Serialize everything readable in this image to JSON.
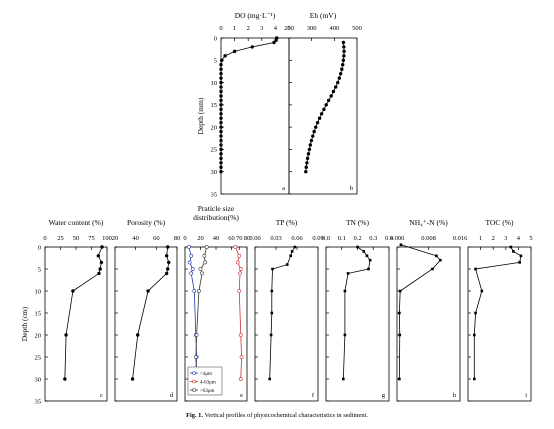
{
  "caption": {
    "label": "Fig. 1.",
    "text": "Vertical profiles of physicochemical characteristics in sediment."
  },
  "chart_data": [
    {
      "id": "a",
      "type": "line",
      "panel_letter": "a",
      "title": "DO (mg·L⁻¹)",
      "ylabel": "Depth (mm)",
      "xlim": [
        0,
        5
      ],
      "ylim": [
        0,
        35
      ],
      "y_inverted": true,
      "xticks": [
        0,
        1,
        2,
        3,
        4,
        5
      ],
      "yticks": [
        0,
        5,
        10,
        15,
        20,
        25,
        30,
        35
      ],
      "series": [
        {
          "marker": "circle",
          "color": "#000000",
          "x": [
            4.1,
            4.05,
            3.9,
            2.3,
            1.0,
            0.3,
            0.05,
            0,
            0,
            0,
            0,
            0,
            0,
            0,
            0,
            0,
            0,
            0,
            0,
            0,
            0,
            0,
            0,
            0,
            0,
            0,
            0,
            0,
            0,
            0,
            0,
            0
          ],
          "y": [
            0,
            0.5,
            1,
            2,
            3,
            4,
            5,
            6,
            7,
            8,
            9,
            10,
            11,
            12,
            13,
            14,
            15,
            16,
            17,
            18,
            19,
            20,
            21,
            22,
            23,
            24,
            25,
            26,
            27,
            28,
            29,
            30
          ]
        }
      ]
    },
    {
      "id": "b",
      "type": "line",
      "panel_letter": "b",
      "title": "Eh (mV)",
      "xlim": [
        200,
        500
      ],
      "ylim": [
        0,
        35
      ],
      "y_inverted": true,
      "xticks": [
        200,
        300,
        400,
        500
      ],
      "yticks": [
        0,
        5,
        10,
        15,
        20,
        25,
        30,
        35
      ],
      "series": [
        {
          "marker": "circle",
          "color": "#000000",
          "x": [
            440,
            442,
            443,
            442,
            440,
            437,
            433,
            428,
            422,
            415,
            406,
            396,
            386,
            375,
            364,
            354,
            344,
            335,
            326,
            318,
            311,
            305,
            299,
            294,
            290,
            286,
            282,
            279,
            276,
            274
          ],
          "y": [
            1,
            2,
            3,
            4,
            5,
            6,
            7,
            8,
            9,
            10,
            11,
            12,
            13,
            14,
            15,
            16,
            17,
            18,
            19,
            20,
            21,
            22,
            23,
            24,
            25,
            26,
            27,
            28,
            29,
            30
          ]
        }
      ]
    },
    {
      "id": "c",
      "type": "line",
      "panel_letter": "c",
      "title": "Water content (%)",
      "ylabel": "Depth (cm)",
      "xlim": [
        0,
        100
      ],
      "ylim": [
        0,
        35
      ],
      "y_inverted": true,
      "xticks": [
        0,
        25,
        50,
        75,
        100
      ],
      "yticks": [
        0,
        5,
        10,
        15,
        20,
        25,
        30,
        35
      ],
      "series": [
        {
          "marker": "circle",
          "color": "#000000",
          "x": [
            92,
            86,
            91,
            89,
            87,
            45,
            34,
            32
          ],
          "y": [
            0,
            2,
            3.5,
            5,
            6,
            10,
            20,
            30
          ]
        }
      ]
    },
    {
      "id": "d",
      "type": "line",
      "panel_letter": "d",
      "title": "Porosity (%)",
      "xlim": [
        20,
        80
      ],
      "ylim": [
        0,
        35
      ],
      "y_inverted": true,
      "xticks": [
        20,
        40,
        60,
        80
      ],
      "yticks": [
        0,
        5,
        10,
        15,
        20,
        25,
        30,
        35
      ],
      "series": [
        {
          "marker": "circle",
          "color": "#000000",
          "x": [
            71,
            70,
            72,
            71,
            70,
            52,
            42,
            37
          ],
          "y": [
            0,
            2,
            3.5,
            5,
            6,
            10,
            20,
            30
          ]
        }
      ]
    },
    {
      "id": "e",
      "type": "line",
      "panel_letter": "e",
      "title": "Praticle size distribution(%)",
      "xlim": [
        0,
        80
      ],
      "ylim": [
        0,
        35
      ],
      "y_inverted": true,
      "xticks": [
        0,
        20,
        40,
        60,
        70,
        80
      ],
      "yticks": [
        0,
        5,
        10,
        15,
        20,
        25,
        30,
        35
      ],
      "legend_position": "bottom-left",
      "series": [
        {
          "name": "<4μm",
          "color": "#1f3aa8",
          "marker": "hollow-circle",
          "x": [
            5,
            8,
            6,
            10,
            8,
            12,
            14,
            15,
            14
          ],
          "y": [
            0,
            2,
            3.5,
            5,
            6,
            10,
            20,
            25,
            30
          ]
        },
        {
          "name": "4-63μm",
          "color": "#d03030",
          "marker": "hollow-circle",
          "x": [
            65,
            70,
            68,
            72,
            71,
            70,
            72,
            73,
            72
          ],
          "y": [
            0,
            2,
            3.5,
            5,
            6,
            10,
            20,
            25,
            30
          ]
        },
        {
          "name": ">63μm",
          "color": "#333333",
          "marker": "hollow-circle",
          "x": [
            28,
            25,
            26,
            20,
            22,
            18,
            15,
            14,
            15
          ],
          "y": [
            0,
            2,
            3.5,
            5,
            6,
            10,
            20,
            25,
            30
          ]
        }
      ]
    },
    {
      "id": "f",
      "type": "line",
      "panel_letter": "f",
      "title": "TP (%)",
      "xlim": [
        0,
        0.09
      ],
      "ylim": [
        0,
        35
      ],
      "y_inverted": true,
      "xticks": [
        0.0,
        0.03,
        0.06,
        0.09
      ],
      "yticks": [
        0,
        5,
        10,
        15,
        20,
        25,
        30,
        35
      ],
      "series": [
        {
          "marker": "square",
          "color": "#000000",
          "x": [
            0.057,
            0.053,
            0.051,
            0.046,
            0.025,
            0.024,
            0.024,
            0.023,
            0.021
          ],
          "y": [
            0,
            1,
            2,
            4,
            5,
            10,
            15,
            20,
            30
          ]
        }
      ]
    },
    {
      "id": "g",
      "type": "line",
      "panel_letter": "g",
      "title": "TN (%)",
      "xlim": [
        0,
        0.4
      ],
      "ylim": [
        0,
        35
      ],
      "y_inverted": true,
      "xticks": [
        0.0,
        0.1,
        0.2,
        0.3,
        0.4
      ],
      "yticks": [
        0,
        5,
        10,
        15,
        20,
        25,
        30,
        35
      ],
      "series": [
        {
          "marker": "square",
          "color": "#000000",
          "x": [
            0.2,
            0.24,
            0.26,
            0.28,
            0.27,
            0.14,
            0.12,
            0.12,
            0.11
          ],
          "y": [
            0,
            1,
            2,
            3,
            5,
            6,
            10,
            20,
            30
          ]
        }
      ]
    },
    {
      "id": "h",
      "type": "line",
      "panel_letter": "h",
      "title": "NH₄⁺-N (%)",
      "xlim": [
        0,
        0.016
      ],
      "ylim": [
        0,
        35
      ],
      "y_inverted": true,
      "xticks": [
        0.0,
        0.008,
        0.016
      ],
      "yticks": [
        0,
        5,
        10,
        15,
        20,
        25,
        30,
        35
      ],
      "series": [
        {
          "marker": "square",
          "color": "#000000",
          "x": [
            0.001,
            0.01,
            0.011,
            0.009,
            0.0008,
            0.0006,
            0.0007,
            0.0006
          ],
          "y": [
            -0.5,
            2,
            3,
            5,
            10,
            15,
            20,
            30
          ]
        }
      ]
    },
    {
      "id": "i",
      "type": "line",
      "panel_letter": "i",
      "title": "TOC (%)",
      "xlim": [
        0,
        5
      ],
      "ylim": [
        0,
        35
      ],
      "y_inverted": true,
      "xticks": [
        1,
        2,
        3,
        4,
        5
      ],
      "yticks": [
        0,
        5,
        10,
        15,
        20,
        25,
        30,
        35
      ],
      "series": [
        {
          "marker": "square",
          "color": "#000000",
          "x": [
            3.4,
            3.6,
            4.2,
            4.1,
            0.6,
            1.1,
            0.6,
            0.5,
            0.5
          ],
          "y": [
            0,
            1,
            2,
            3.5,
            5,
            10,
            15,
            20,
            30
          ]
        }
      ]
    }
  ]
}
